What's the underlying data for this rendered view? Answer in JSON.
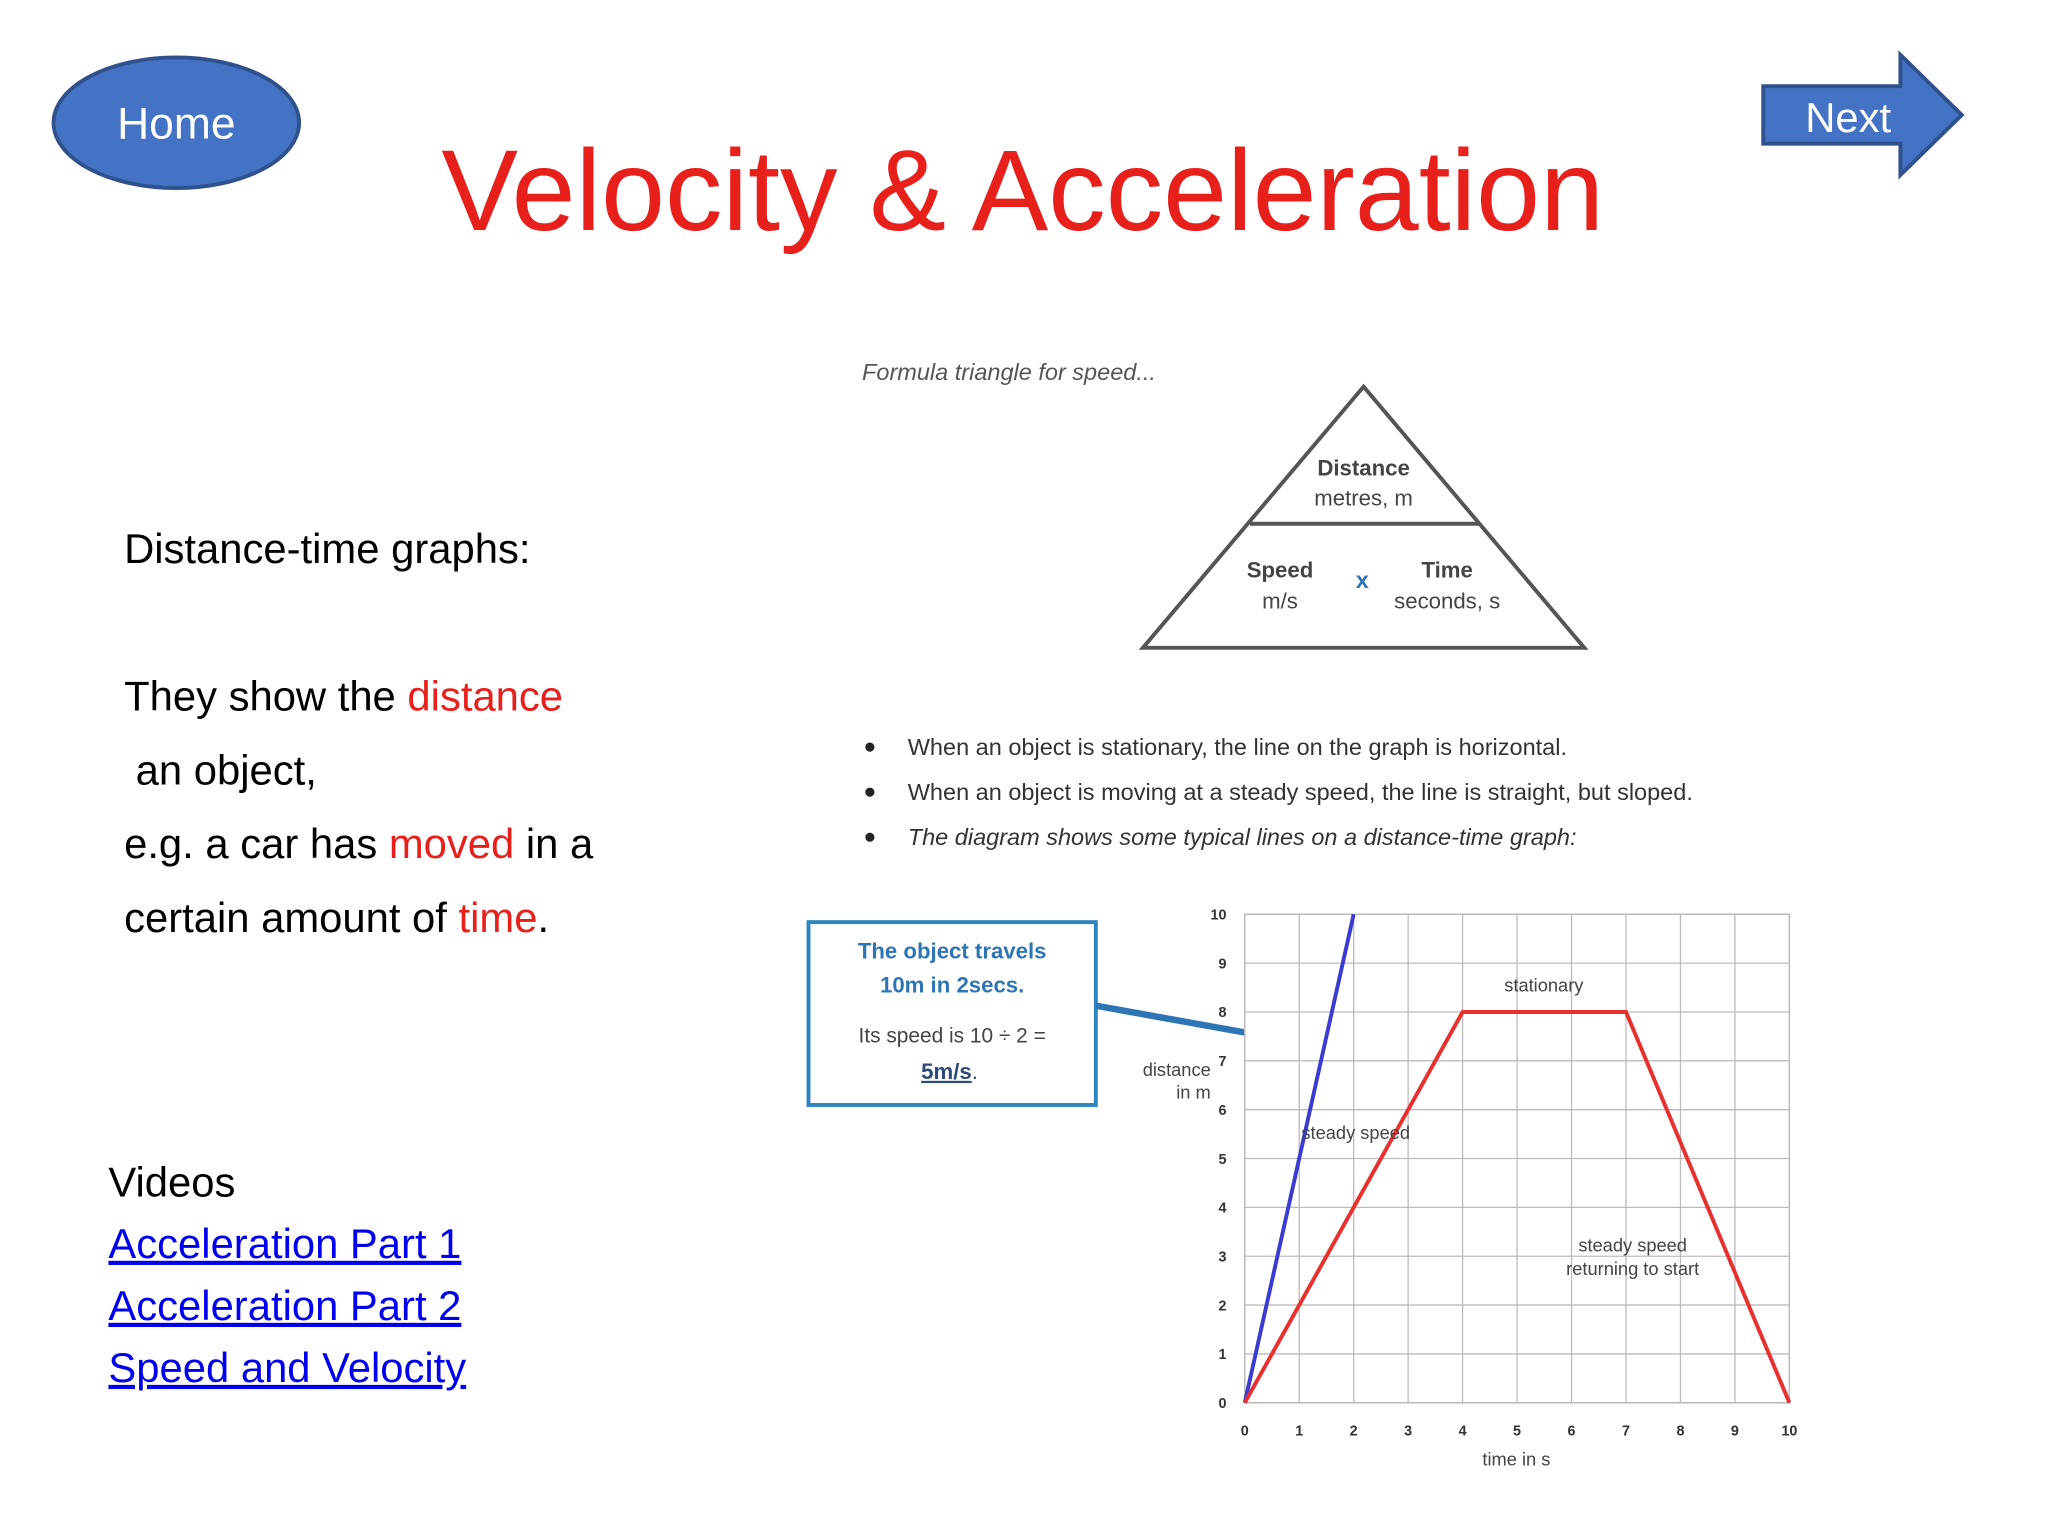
{
  "buttons": {
    "home": "Home",
    "next": "Next"
  },
  "title": "Velocity & Acceleration",
  "left": {
    "heading": "Distance-time graphs:",
    "highlight_color": "#e8201c",
    "lines": [
      [
        {
          "text": "They show the "
        },
        {
          "text": "distance",
          "highlight": true
        }
      ],
      [
        {
          "text": " an object,"
        }
      ],
      [
        {
          "text": "e.g. a car has "
        },
        {
          "text": "moved",
          "highlight": true
        },
        {
          "text": " in a"
        }
      ],
      [
        {
          "text": "certain amount of "
        },
        {
          "text": "time",
          "highlight": true
        },
        {
          "text": "."
        }
      ]
    ],
    "videos_heading": "Videos",
    "links": [
      "Acceleration Part 1",
      "Acceleration Part 2",
      "Speed and Velocity"
    ]
  },
  "figure": {
    "caption": "Formula triangle for speed...",
    "triangle": {
      "top": "Distance",
      "top_unit": "metres, m",
      "left": "Speed",
      "left_unit": "m/s",
      "operator": "x",
      "right": "Time",
      "right_unit": "seconds, s"
    },
    "bullets": [
      "When an object is stationary, the line on the graph is horizontal.",
      "When an object is moving at a steady speed, the line is straight, but sloped.",
      "The diagram shows some typical lines on a distance-time graph:"
    ],
    "callout": {
      "title_lines": [
        "The object travels",
        "10m in 2secs."
      ],
      "speed_text": "Its speed is 10 ÷ 2 =",
      "answer": "5m/s",
      "end": "."
    },
    "graph": {
      "type": "line",
      "y_label_lines": [
        "distance",
        "in m"
      ],
      "x_label": "time in s",
      "annotations": [
        "stationary",
        "steady speed",
        "steady speed",
        "returning to start"
      ],
      "xlim": [
        0,
        10
      ],
      "ylim": [
        0,
        10
      ],
      "xticks": [
        0,
        1,
        2,
        3,
        4,
        5,
        6,
        7,
        8,
        9,
        10
      ],
      "yticks": [
        0,
        1,
        2,
        3,
        4,
        5,
        6,
        7,
        8,
        9,
        10
      ],
      "grid": true,
      "series": [
        {
          "color": "#3b3bd1",
          "x": [
            0,
            2
          ],
          "values": [
            0,
            10
          ]
        },
        {
          "color": "#e8302e",
          "x": [
            0,
            4,
            7,
            10
          ],
          "values": [
            0,
            8,
            8,
            0
          ]
        }
      ]
    }
  }
}
